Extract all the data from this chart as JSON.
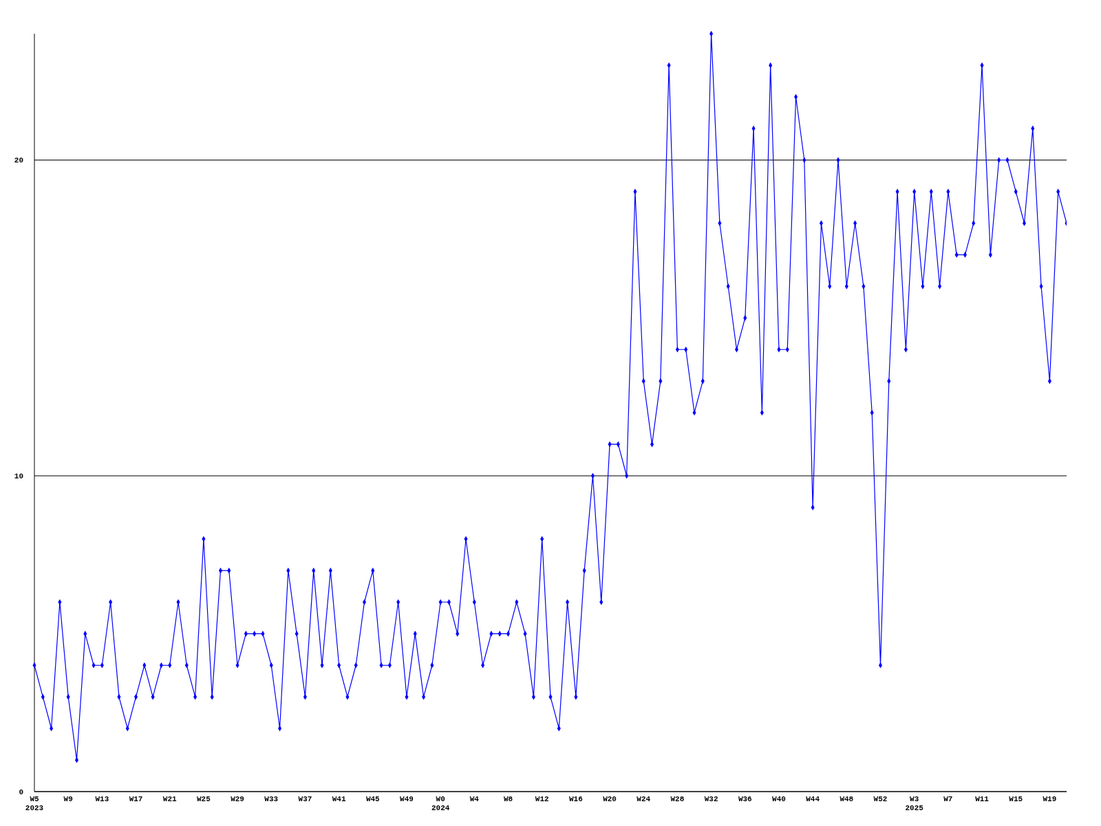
{
  "chart_data": {
    "type": "line",
    "categories": [
      "W5\n2023",
      null,
      null,
      null,
      "W9",
      null,
      null,
      null,
      "W13",
      null,
      null,
      null,
      "W17",
      null,
      null,
      null,
      "W21",
      null,
      null,
      null,
      "W25",
      null,
      null,
      null,
      "W29",
      null,
      null,
      null,
      "W33",
      null,
      null,
      null,
      "W37",
      null,
      null,
      null,
      "W41",
      null,
      null,
      null,
      "W45",
      null,
      null,
      null,
      "W49",
      null,
      null,
      null,
      "W0\n2024",
      null,
      null,
      null,
      "W4",
      null,
      null,
      null,
      "W8",
      null,
      null,
      null,
      "W12",
      null,
      null,
      null,
      "W16",
      null,
      null,
      null,
      "W20",
      null,
      null,
      null,
      "W24",
      null,
      null,
      null,
      "W28",
      null,
      null,
      null,
      "W32",
      null,
      null,
      null,
      "W36",
      null,
      null,
      null,
      "W40",
      null,
      null,
      null,
      "W44",
      null,
      null,
      null,
      "W48",
      null,
      null,
      null,
      "W52",
      null,
      null,
      null,
      "W3\n2025",
      null,
      null,
      null,
      "W7",
      null,
      null,
      null,
      "W11",
      null,
      null,
      null,
      "W15",
      null,
      null,
      null,
      "W19",
      null,
      null
    ],
    "series": [
      {
        "color": "#0000ff",
        "values": [
          4,
          3,
          2,
          6,
          3,
          1,
          5,
          4,
          4,
          6,
          3,
          2,
          3,
          4,
          3,
          4,
          4,
          6,
          4,
          3,
          8,
          3,
          7,
          7,
          4,
          5,
          5,
          5,
          4,
          2,
          7,
          5,
          3,
          7,
          4,
          7,
          4,
          3,
          4,
          6,
          7,
          4,
          4,
          6,
          3,
          5,
          3,
          4,
          6,
          6,
          5,
          8,
          6,
          4,
          5,
          5,
          5,
          6,
          5,
          3,
          8,
          3,
          2,
          6,
          3,
          7,
          10,
          6,
          11,
          11,
          10,
          19,
          13,
          11,
          13,
          23,
          14,
          14,
          12,
          13,
          24,
          18,
          16,
          14,
          15,
          21,
          12,
          23,
          14,
          14,
          22,
          20,
          9,
          18,
          16,
          20,
          16,
          18,
          16,
          12,
          4,
          13,
          19,
          14,
          19,
          16,
          19,
          16,
          19,
          17,
          17,
          18,
          23,
          17,
          20,
          20,
          19,
          18,
          21,
          16,
          13,
          19,
          18
        ]
      }
    ],
    "ylim": [
      0,
      24
    ],
    "yticks": [
      0,
      10,
      20
    ],
    "grid": "y",
    "marker": "diamond",
    "line_style": "solid"
  }
}
